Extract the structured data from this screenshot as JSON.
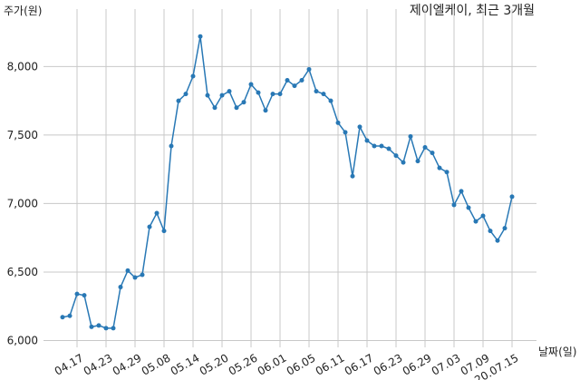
{
  "chart_data": {
    "type": "line",
    "title": "제이엘케이, 최근 3개월",
    "y_label": "주가(원)",
    "x_label": "날짜(일)",
    "categories": [
      null,
      null,
      "04.17",
      null,
      null,
      null,
      "04.23",
      null,
      null,
      null,
      "04.29",
      null,
      null,
      null,
      "05.08",
      null,
      null,
      null,
      "05.14",
      null,
      null,
      null,
      "05.20",
      null,
      null,
      null,
      "05.26",
      null,
      null,
      null,
      "06.01",
      null,
      null,
      null,
      "06.05",
      null,
      null,
      null,
      "06.11",
      null,
      null,
      null,
      "06.17",
      null,
      null,
      null,
      "06.23",
      null,
      null,
      null,
      "06.29",
      null,
      null,
      null,
      "07.03",
      null,
      null,
      null,
      "07.09",
      null,
      null,
      null,
      "20.07.15"
    ],
    "series": [
      {
        "name": "제이엘케이",
        "color": "#2878b5",
        "values": [
          6170,
          6180,
          6340,
          6330,
          6100,
          6110,
          6090,
          6090,
          6390,
          6510,
          6460,
          6480,
          6830,
          6930,
          6800,
          7420,
          7750,
          7800,
          7930,
          8220,
          7790,
          7700,
          7790,
          7820,
          7700,
          7740,
          7870,
          7810,
          7680,
          7800,
          7800,
          7900,
          7860,
          7900,
          7980,
          7820,
          7800,
          7750,
          7590,
          7520,
          7200,
          7560,
          7460,
          7420,
          7420,
          7400,
          7350,
          7300,
          7490,
          7310,
          7410,
          7370,
          7260,
          7230,
          6990,
          7090,
          6970,
          6870,
          6910,
          6800,
          6730,
          6820,
          7050
        ]
      }
    ],
    "ylim": [
      5950,
      8420
    ],
    "yticks": [
      {
        "value": 6000,
        "label": "6,000"
      },
      {
        "value": 6500,
        "label": "6,500"
      },
      {
        "value": 7000,
        "label": "7,000"
      },
      {
        "value": 7500,
        "label": "7,500"
      },
      {
        "value": 8000,
        "label": "8,000"
      }
    ],
    "grid": true
  }
}
